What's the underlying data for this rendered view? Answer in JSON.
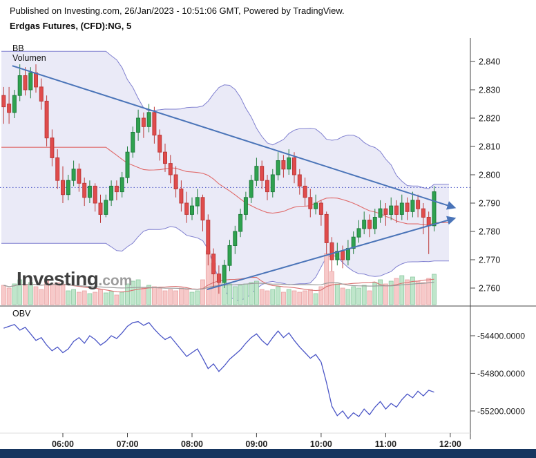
{
  "header": {
    "published_line": "Published on Investing.com, 26/Jan/2023 - 10:51:06 GMT, Powered by TradingView.",
    "instrument_title": "Erdgas Futures, (CFD):NG, 5"
  },
  "indicators": {
    "bb_label": "BB",
    "volume_label": "Volumen",
    "obv_label": "OBV"
  },
  "watermark": {
    "brand": "Investing",
    "suffix": ".com"
  },
  "colors": {
    "up": "#2fa24f",
    "up_border": "#1f7d3c",
    "down": "#e04c4c",
    "down_border": "#bd3a3a",
    "vol_up": "#bfe6cb",
    "vol_up_border": "#8cc9a0",
    "vol_down": "#f7c9c9",
    "vol_down_border": "#e8a2a2",
    "band_fill": "#6b6bc8",
    "band_line": "#5a5ac2",
    "band_mid": "#e06a6a",
    "trend": "#4a74b8",
    "obv": "#4a55c6",
    "dotted": "#4a55c6",
    "axis_text": "#1a1a1a",
    "axis_line": "#444444",
    "vol_ma_fast": "#d97070",
    "vol_ma_slow": "#9b9b9b",
    "bottom_bar": "#16355f"
  },
  "chart_data": {
    "type": "candlestick",
    "title": "Erdgas Futures, (CFD):NG, 5",
    "interval_minutes": 5,
    "date": "26/Jan/2023",
    "price_axis": {
      "min": 2.755,
      "max": 2.848
    },
    "price_ticks": [
      "2.840",
      "2.830",
      "2.820",
      "2.810",
      "2.800",
      "2.790",
      "2.780",
      "2.770",
      "2.760"
    ],
    "time_ticks": [
      {
        "label": "06:00",
        "minute": 360
      },
      {
        "label": "07:00",
        "minute": 420
      },
      {
        "label": "08:00",
        "minute": 480
      },
      {
        "label": "09:00",
        "minute": 540
      },
      {
        "label": "10:00",
        "minute": 600
      },
      {
        "label": "11:00",
        "minute": 660
      },
      {
        "label": "12:00",
        "minute": 720
      }
    ],
    "dotted_level": 2.7955,
    "bollinger": {
      "period": 20,
      "stddev": 2
    },
    "trendlines": [
      {
        "name": "descending-resistance-line",
        "t1": 313,
        "p1": 2.8385,
        "t2": 723,
        "p2": 2.7885
      },
      {
        "name": "ascending-support-line",
        "t1": 494,
        "p1": 2.7595,
        "t2": 723,
        "p2": 2.7845
      }
    ],
    "candles": [
      [
        305,
        2.828,
        2.831,
        2.818,
        2.824,
        140
      ],
      [
        310,
        2.825,
        2.831,
        2.818,
        2.822,
        120
      ],
      [
        315,
        2.822,
        2.83,
        2.82,
        2.828,
        150
      ],
      [
        320,
        2.828,
        2.839,
        2.826,
        2.835,
        180
      ],
      [
        325,
        2.835,
        2.838,
        2.828,
        2.83,
        140
      ],
      [
        330,
        2.83,
        2.838,
        2.827,
        2.836,
        160
      ],
      [
        335,
        2.836,
        2.839,
        2.829,
        2.831,
        130
      ],
      [
        340,
        2.831,
        2.834,
        2.823,
        2.826,
        110
      ],
      [
        345,
        2.826,
        2.828,
        2.81,
        2.813,
        170
      ],
      [
        350,
        2.813,
        2.816,
        2.803,
        2.806,
        150
      ],
      [
        355,
        2.806,
        2.809,
        2.795,
        2.798,
        160
      ],
      [
        360,
        2.798,
        2.803,
        2.79,
        2.793,
        140
      ],
      [
        365,
        2.793,
        2.8,
        2.791,
        2.798,
        100
      ],
      [
        370,
        2.798,
        2.805,
        2.796,
        2.802,
        110
      ],
      [
        375,
        2.802,
        2.804,
        2.794,
        2.797,
        90
      ],
      [
        380,
        2.797,
        2.799,
        2.789,
        2.792,
        100
      ],
      [
        385,
        2.792,
        2.798,
        2.79,
        2.796,
        80
      ],
      [
        390,
        2.796,
        2.797,
        2.787,
        2.79,
        90
      ],
      [
        395,
        2.79,
        2.793,
        2.783,
        2.786,
        110
      ],
      [
        400,
        2.786,
        2.793,
        2.785,
        2.791,
        85
      ],
      [
        405,
        2.791,
        2.798,
        2.789,
        2.796,
        95
      ],
      [
        410,
        2.796,
        2.798,
        2.791,
        2.794,
        70
      ],
      [
        415,
        2.794,
        2.801,
        2.792,
        2.799,
        90
      ],
      [
        420,
        2.799,
        2.81,
        2.797,
        2.808,
        150
      ],
      [
        425,
        2.808,
        2.817,
        2.806,
        2.815,
        170
      ],
      [
        430,
        2.815,
        2.823,
        2.812,
        2.82,
        180
      ],
      [
        435,
        2.82,
        2.822,
        2.813,
        2.817,
        120
      ],
      [
        440,
        2.817,
        2.825,
        2.815,
        2.822,
        140
      ],
      [
        445,
        2.822,
        2.824,
        2.811,
        2.814,
        130
      ],
      [
        450,
        2.814,
        2.816,
        2.805,
        2.808,
        120
      ],
      [
        455,
        2.808,
        2.811,
        2.801,
        2.804,
        100
      ],
      [
        460,
        2.804,
        2.807,
        2.797,
        2.8,
        110
      ],
      [
        465,
        2.8,
        2.803,
        2.792,
        2.795,
        100
      ],
      [
        470,
        2.795,
        2.798,
        2.787,
        2.79,
        120
      ],
      [
        475,
        2.79,
        2.794,
        2.783,
        2.786,
        110
      ],
      [
        480,
        2.786,
        2.792,
        2.784,
        2.789,
        90
      ],
      [
        485,
        2.789,
        2.795,
        2.786,
        2.792,
        100
      ],
      [
        490,
        2.792,
        2.793,
        2.78,
        2.784,
        180
      ],
      [
        495,
        2.784,
        2.786,
        2.768,
        2.772,
        390
      ],
      [
        500,
        2.772,
        2.774,
        2.76,
        2.765,
        300
      ],
      [
        505,
        2.765,
        2.768,
        2.758,
        2.762,
        220
      ],
      [
        510,
        2.762,
        2.77,
        2.76,
        2.768,
        160
      ],
      [
        515,
        2.768,
        2.777,
        2.766,
        2.775,
        150
      ],
      [
        520,
        2.775,
        2.782,
        2.772,
        2.78,
        130
      ],
      [
        525,
        2.78,
        2.788,
        2.778,
        2.786,
        140
      ],
      [
        530,
        2.786,
        2.794,
        2.784,
        2.792,
        150
      ],
      [
        535,
        2.792,
        2.8,
        2.79,
        2.798,
        160
      ],
      [
        540,
        2.798,
        2.806,
        2.796,
        2.803,
        170
      ],
      [
        545,
        2.803,
        2.805,
        2.795,
        2.798,
        110
      ],
      [
        550,
        2.798,
        2.8,
        2.791,
        2.794,
        100
      ],
      [
        555,
        2.794,
        2.802,
        2.792,
        2.8,
        110
      ],
      [
        560,
        2.8,
        2.808,
        2.798,
        2.805,
        130
      ],
      [
        565,
        2.805,
        2.807,
        2.799,
        2.802,
        90
      ],
      [
        570,
        2.802,
        2.809,
        2.8,
        2.806,
        110
      ],
      [
        575,
        2.806,
        2.808,
        2.797,
        2.8,
        100
      ],
      [
        580,
        2.8,
        2.802,
        2.793,
        2.796,
        90
      ],
      [
        585,
        2.796,
        2.799,
        2.789,
        2.792,
        100
      ],
      [
        590,
        2.792,
        2.795,
        2.785,
        2.788,
        110
      ],
      [
        595,
        2.788,
        2.793,
        2.786,
        2.79,
        80
      ],
      [
        600,
        2.79,
        2.791,
        2.782,
        2.786,
        130
      ],
      [
        605,
        2.786,
        2.787,
        2.772,
        2.776,
        370
      ],
      [
        610,
        2.776,
        2.778,
        2.766,
        2.77,
        240
      ],
      [
        615,
        2.77,
        2.776,
        2.768,
        2.773,
        150
      ],
      [
        620,
        2.773,
        2.775,
        2.767,
        2.77,
        120
      ],
      [
        625,
        2.77,
        2.777,
        2.768,
        2.774,
        110
      ],
      [
        630,
        2.774,
        2.78,
        2.772,
        2.778,
        130
      ],
      [
        635,
        2.778,
        2.784,
        2.776,
        2.781,
        120
      ],
      [
        640,
        2.781,
        2.787,
        2.779,
        2.784,
        140
      ],
      [
        645,
        2.784,
        2.786,
        2.778,
        2.781,
        100
      ],
      [
        650,
        2.781,
        2.788,
        2.779,
        2.785,
        160
      ],
      [
        655,
        2.785,
        2.791,
        2.783,
        2.788,
        180
      ],
      [
        660,
        2.788,
        2.79,
        2.782,
        2.786,
        150
      ],
      [
        665,
        2.786,
        2.792,
        2.784,
        2.789,
        170
      ],
      [
        670,
        2.789,
        2.791,
        2.783,
        2.786,
        190
      ],
      [
        675,
        2.786,
        2.793,
        2.784,
        2.79,
        210
      ],
      [
        680,
        2.79,
        2.792,
        2.784,
        2.787,
        180
      ],
      [
        685,
        2.787,
        2.794,
        2.785,
        2.791,
        200
      ],
      [
        690,
        2.791,
        2.793,
        2.785,
        2.788,
        170
      ],
      [
        695,
        2.788,
        2.79,
        2.779,
        2.785,
        160
      ],
      [
        700,
        2.785,
        2.787,
        2.772,
        2.782,
        190
      ],
      [
        705,
        2.782,
        2.796,
        2.78,
        2.794,
        220
      ]
    ],
    "obv": {
      "name": "OBV",
      "ticks": [
        "-54400.0000",
        "-54800.0000",
        "-55200.0000"
      ],
      "values": [
        -54320,
        -54300,
        -54280,
        -54340,
        -54310,
        -54380,
        -54450,
        -54420,
        -54500,
        -54560,
        -54520,
        -54580,
        -54540,
        -54460,
        -54420,
        -54480,
        -54400,
        -54440,
        -54500,
        -54460,
        -54400,
        -54430,
        -54370,
        -54300,
        -54260,
        -54250,
        -54290,
        -54260,
        -54330,
        -54390,
        -54440,
        -54410,
        -54480,
        -54550,
        -54620,
        -54580,
        -54540,
        -54640,
        -54750,
        -54700,
        -54780,
        -54720,
        -54650,
        -54600,
        -54550,
        -54480,
        -54420,
        -54380,
        -54450,
        -54500,
        -54420,
        -54350,
        -54420,
        -54370,
        -54450,
        -54520,
        -54580,
        -54640,
        -54600,
        -54680,
        -54900,
        -55150,
        -55250,
        -55200,
        -55280,
        -55220,
        -55260,
        -55180,
        -55240,
        -55160,
        -55100,
        -55180,
        -55120,
        -55160,
        -55080,
        -55020,
        -55060,
        -54990,
        -55040,
        -54980,
        -55000
      ]
    }
  }
}
